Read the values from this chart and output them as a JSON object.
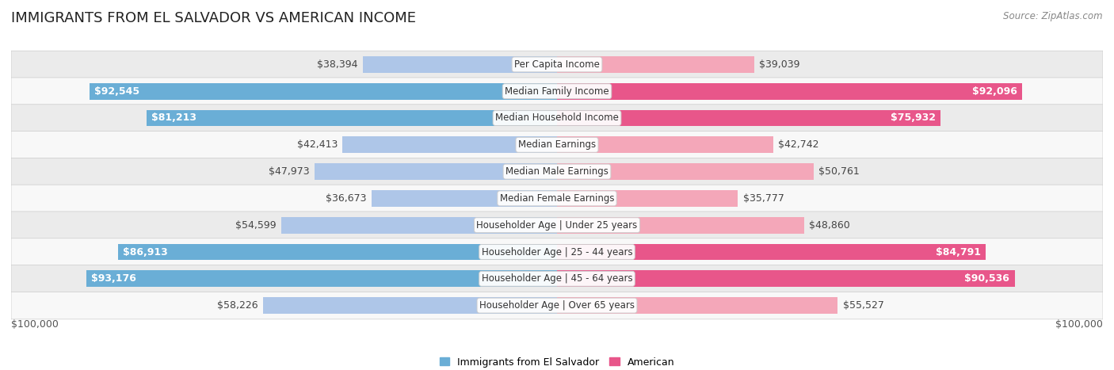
{
  "title": "IMMIGRANTS FROM EL SALVADOR VS AMERICAN INCOME",
  "source": "Source: ZipAtlas.com",
  "categories": [
    "Per Capita Income",
    "Median Family Income",
    "Median Household Income",
    "Median Earnings",
    "Median Male Earnings",
    "Median Female Earnings",
    "Householder Age | Under 25 years",
    "Householder Age | 25 - 44 years",
    "Householder Age | 45 - 64 years",
    "Householder Age | Over 65 years"
  ],
  "left_values": [
    38394,
    92545,
    81213,
    42413,
    47973,
    36673,
    54599,
    86913,
    93176,
    58226
  ],
  "right_values": [
    39039,
    92096,
    75932,
    42742,
    50761,
    35777,
    48860,
    84791,
    90536,
    55527
  ],
  "left_labels": [
    "$38,394",
    "$92,545",
    "$81,213",
    "$42,413",
    "$47,973",
    "$36,673",
    "$54,599",
    "$86,913",
    "$93,176",
    "$58,226"
  ],
  "right_labels": [
    "$39,039",
    "$92,096",
    "$75,932",
    "$42,742",
    "$50,761",
    "$35,777",
    "$48,860",
    "$84,791",
    "$90,536",
    "$55,527"
  ],
  "left_inside": [
    false,
    true,
    true,
    false,
    false,
    false,
    false,
    true,
    true,
    false
  ],
  "right_inside": [
    false,
    true,
    true,
    false,
    false,
    false,
    false,
    true,
    true,
    false
  ],
  "max_value": 100000,
  "bar_height": 0.62,
  "left_color_large": "#6aaed6",
  "left_color_small": "#aec6e8",
  "right_color_large": "#e8568a",
  "right_color_small": "#f4a7b9",
  "large_threshold": 60000,
  "left_label_color_inside": "#ffffff",
  "right_label_color_inside": "#ffffff",
  "left_label_color_outside": "#444444",
  "right_label_color_outside": "#444444",
  "background_color": "#ffffff",
  "row_bg_even": "#ebebeb",
  "row_bg_odd": "#f8f8f8",
  "legend_left": "Immigrants from El Salvador",
  "legend_right": "American",
  "xlabel_left": "$100,000",
  "xlabel_right": "$100,000",
  "title_fontsize": 13,
  "label_fontsize": 9,
  "category_fontsize": 8.5,
  "source_fontsize": 8.5
}
